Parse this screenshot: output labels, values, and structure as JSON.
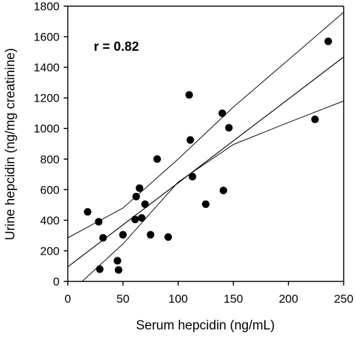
{
  "chart_data": {
    "type": "scatter",
    "xlabel": "Serum hepcidin (ng/mL)",
    "ylabel": "Urine hepcidin (ng/mg creatinine)",
    "xlim": [
      0,
      250
    ],
    "ylim": [
      0,
      1800
    ],
    "xticks": [
      "0",
      "50",
      "100",
      "150",
      "200",
      "250"
    ],
    "yticks": [
      "0",
      "200",
      "400",
      "600",
      "800",
      "1000",
      "1200",
      "1400",
      "1600",
      "1800"
    ],
    "annotation": "r = 0.82",
    "grid": false,
    "points": [
      {
        "x": 18,
        "y": 455
      },
      {
        "x": 28,
        "y": 390
      },
      {
        "x": 29,
        "y": 80
      },
      {
        "x": 32,
        "y": 285
      },
      {
        "x": 45,
        "y": 135
      },
      {
        "x": 46,
        "y": 75
      },
      {
        "x": 50,
        "y": 305
      },
      {
        "x": 61,
        "y": 405
      },
      {
        "x": 62,
        "y": 555
      },
      {
        "x": 65,
        "y": 610
      },
      {
        "x": 67,
        "y": 415
      },
      {
        "x": 70,
        "y": 505
      },
      {
        "x": 75,
        "y": 305
      },
      {
        "x": 81,
        "y": 800
      },
      {
        "x": 91,
        "y": 290
      },
      {
        "x": 110,
        "y": 1220
      },
      {
        "x": 111,
        "y": 925
      },
      {
        "x": 113,
        "y": 685
      },
      {
        "x": 125,
        "y": 505
      },
      {
        "x": 140,
        "y": 1100
      },
      {
        "x": 141,
        "y": 595
      },
      {
        "x": 146,
        "y": 1005
      },
      {
        "x": 224,
        "y": 1060
      },
      {
        "x": 236,
        "y": 1570
      }
    ],
    "regression_line": {
      "x": [
        0,
        250
      ],
      "y": [
        95,
        1468
      ]
    },
    "upper_ci": {
      "x": [
        0,
        50,
        100,
        150,
        200,
        250
      ],
      "y": [
        285,
        480,
        800,
        1140,
        1450,
        1760
      ]
    },
    "lower_ci": {
      "x": [
        13,
        50,
        100,
        150,
        200,
        250
      ],
      "y": [
        0,
        245,
        650,
        895,
        1040,
        1180
      ]
    }
  }
}
